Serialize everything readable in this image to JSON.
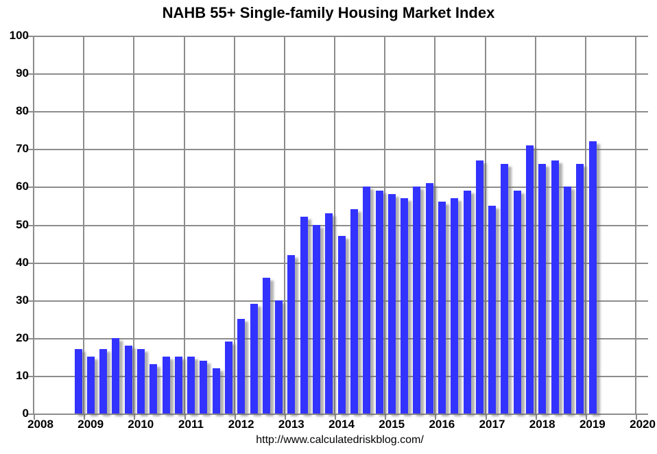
{
  "title": "NAHB 55+ Single-family Housing Market Index",
  "footer": {
    "url_text": "http://www.calculatedriskblog.com/"
  },
  "colors": {
    "bar": "#3333ff",
    "gridline": "#8c8c8c",
    "text": "#000000",
    "background": "#ffffff"
  },
  "chart_data": {
    "type": "bar",
    "title": "NAHB 55+ Single-family Housing Market Index",
    "xlabel": "",
    "ylabel": "",
    "ylim": [
      0,
      100
    ],
    "y_tick_step": 10,
    "y_tick_labels": [
      "0",
      "10",
      "20",
      "30",
      "40",
      "50",
      "60",
      "70",
      "80",
      "90",
      "100"
    ],
    "x_tick_labels": [
      "2008",
      "2009",
      "2010",
      "2011",
      "2012",
      "2013",
      "2014",
      "2015",
      "2016",
      "2017",
      "2018",
      "2019",
      "2020"
    ],
    "grid": true,
    "legend": false,
    "bar_period": "quarterly",
    "categories": [
      "2008 Q4",
      "2009 Q1",
      "2009 Q2",
      "2009 Q3",
      "2009 Q4",
      "2010 Q1",
      "2010 Q2",
      "2010 Q3",
      "2010 Q4",
      "2011 Q1",
      "2011 Q2",
      "2011 Q3",
      "2011 Q4",
      "2012 Q1",
      "2012 Q2",
      "2012 Q3",
      "2012 Q4",
      "2013 Q1",
      "2013 Q2",
      "2013 Q3",
      "2013 Q4",
      "2014 Q1",
      "2014 Q2",
      "2014 Q3",
      "2014 Q4",
      "2015 Q1",
      "2015 Q2",
      "2015 Q3",
      "2015 Q4",
      "2016 Q1",
      "2016 Q2",
      "2016 Q3",
      "2016 Q4",
      "2017 Q1",
      "2017 Q2",
      "2017 Q3",
      "2017 Q4",
      "2018 Q1",
      "2018 Q2",
      "2018 Q3",
      "2018 Q4",
      "2019 Q1"
    ],
    "values": [
      17,
      15,
      17,
      20,
      18,
      17,
      13,
      15,
      15,
      15,
      14,
      12,
      19,
      25,
      29,
      36,
      30,
      42,
      52,
      50,
      53,
      47,
      54,
      60,
      59,
      58,
      57,
      60,
      61,
      56,
      57,
      59,
      67,
      55,
      66,
      59,
      71,
      66,
      67,
      60,
      66,
      72
    ]
  }
}
